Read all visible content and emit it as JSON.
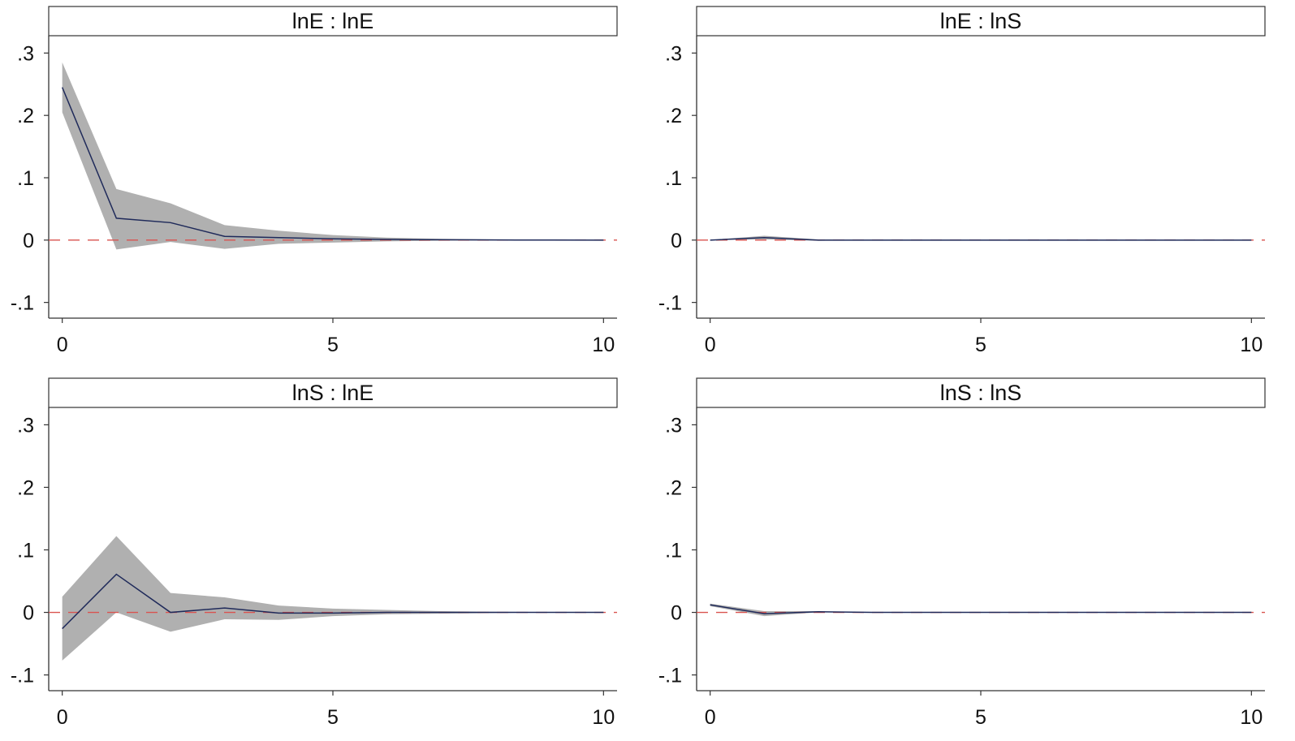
{
  "colors": {
    "band": "#b0b0b0",
    "line": "#1f2a5a",
    "zero_line": "#d9534f",
    "axis": "#333333",
    "header_bg": "#ffffff"
  },
  "chart_data": [
    {
      "type": "area",
      "title": "lnE : lnE",
      "x": [
        0,
        1,
        2,
        3,
        4,
        5,
        6,
        7,
        8,
        9,
        10
      ],
      "series": [
        {
          "values": [
            0.245,
            0.035,
            0.028,
            0.006,
            0.004,
            0.002,
            0.001,
            0.0005,
            0.0002,
            0.0001,
            0.0
          ]
        },
        {
          "values_lower": [
            0.205,
            -0.015,
            -0.003,
            -0.014,
            -0.006,
            -0.004,
            -0.002,
            -0.001,
            -0.0005,
            -0.0002,
            0.0
          ],
          "values_upper": [
            0.285,
            0.082,
            0.059,
            0.024,
            0.015,
            0.008,
            0.004,
            0.002,
            0.001,
            0.0005,
            0.0
          ]
        }
      ],
      "xticks": [
        0,
        5,
        10
      ],
      "yticks": [
        ".3",
        ".2",
        ".1",
        "0",
        "-.1"
      ],
      "ytick_values": [
        0.3,
        0.2,
        0.1,
        0,
        -0.1
      ],
      "xlim": [
        -0.25,
        10.25
      ],
      "ylim": [
        -0.12,
        0.32
      ],
      "reference_line": 0
    },
    {
      "type": "area",
      "title": "lnE : lnS",
      "x": [
        0,
        1,
        2,
        3,
        4,
        5,
        6,
        7,
        8,
        9,
        10
      ],
      "series": [
        {
          "values": [
            0.0,
            0.004,
            0.0,
            0.0,
            0.0,
            0.0,
            0.0,
            0.0,
            0.0,
            0.0,
            0.0
          ]
        },
        {
          "values_lower": [
            0.0,
            0.001,
            -0.001,
            0.0,
            0.0,
            0.0,
            0.0,
            0.0,
            0.0,
            0.0,
            0.0
          ],
          "values_upper": [
            0.0,
            0.007,
            0.001,
            0.0,
            0.0,
            0.0,
            0.0,
            0.0,
            0.0,
            0.0,
            0.0
          ]
        }
      ],
      "xticks": [
        0,
        5,
        10
      ],
      "yticks": [
        ".3",
        ".2",
        ".1",
        "0",
        "-.1"
      ],
      "ytick_values": [
        0.3,
        0.2,
        0.1,
        0,
        -0.1
      ],
      "xlim": [
        -0.25,
        10.25
      ],
      "ylim": [
        -0.12,
        0.32
      ],
      "reference_line": 0
    },
    {
      "type": "area",
      "title": "lnS : lnE",
      "x": [
        0,
        1,
        2,
        3,
        4,
        5,
        6,
        7,
        8,
        9,
        10
      ],
      "series": [
        {
          "values": [
            -0.026,
            0.061,
            0.0,
            0.007,
            -0.001,
            -0.001,
            0.0,
            0.0,
            0.0,
            0.0,
            0.0
          ]
        },
        {
          "values_lower": [
            -0.077,
            0.0,
            -0.031,
            -0.011,
            -0.012,
            -0.006,
            -0.003,
            -0.002,
            -0.001,
            0.0,
            0.0
          ],
          "values_upper": [
            0.025,
            0.122,
            0.031,
            0.024,
            0.011,
            0.006,
            0.004,
            0.002,
            0.001,
            0.0005,
            0.0
          ]
        }
      ],
      "xticks": [
        0,
        5,
        10
      ],
      "yticks": [
        ".3",
        ".2",
        ".1",
        "0",
        "-.1"
      ],
      "ytick_values": [
        0.3,
        0.2,
        0.1,
        0,
        -0.1
      ],
      "xlim": [
        -0.25,
        10.25
      ],
      "ylim": [
        -0.12,
        0.32
      ],
      "reference_line": 0
    },
    {
      "type": "area",
      "title": "lnS : lnS",
      "x": [
        0,
        1,
        2,
        3,
        4,
        5,
        6,
        7,
        8,
        9,
        10
      ],
      "series": [
        {
          "values": [
            0.012,
            -0.002,
            0.001,
            0.0,
            0.0,
            0.0,
            0.0,
            0.0,
            0.0,
            0.0,
            0.0
          ]
        },
        {
          "values_lower": [
            0.01,
            -0.006,
            0.0,
            0.0,
            0.0,
            0.0,
            0.0,
            0.0,
            0.0,
            0.0,
            0.0
          ],
          "values_upper": [
            0.014,
            0.002,
            0.002,
            0.0,
            0.0,
            0.0,
            0.0,
            0.0,
            0.0,
            0.0,
            0.0
          ]
        }
      ],
      "xticks": [
        0,
        5,
        10
      ],
      "yticks": [
        ".3",
        ".2",
        ".1",
        "0",
        "-.1"
      ],
      "ytick_values": [
        0.3,
        0.2,
        0.1,
        0,
        -0.1
      ],
      "xlim": [
        -0.25,
        10.25
      ],
      "ylim": [
        -0.12,
        0.32
      ],
      "reference_line": 0
    }
  ]
}
